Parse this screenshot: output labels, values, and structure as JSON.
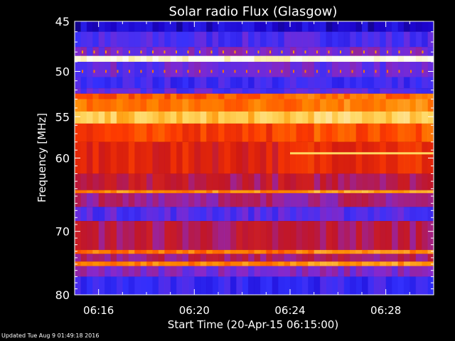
{
  "chart_data": {
    "type": "heatmap",
    "title": "Solar radio Flux (Glasgow)",
    "xlabel": "Start Time (20-Apr-15 06:15:00)",
    "ylabel": "Frequency [MHz]",
    "x_ticks": [
      "06:16",
      "06:20",
      "06:24",
      "06:28"
    ],
    "x_tick_minutes": [
      1,
      5,
      9,
      13
    ],
    "xlim_minutes": [
      0,
      15
    ],
    "y_ticks": [
      45,
      50,
      55,
      60,
      70,
      80
    ],
    "ylim": [
      45,
      80
    ],
    "y_scale": "log",
    "colormap": [
      "#000000",
      "#1a00c8",
      "#3232ff",
      "#8c28c8",
      "#c81414",
      "#ff3c00",
      "#ff9600",
      "#ffe678",
      "#ffffff"
    ],
    "bands": [
      {
        "from": 45.0,
        "to": 46.0,
        "level": 0.15
      },
      {
        "from": 46.0,
        "to": 47.5,
        "level": 0.28
      },
      {
        "from": 47.5,
        "to": 48.4,
        "level": 0.34
      },
      {
        "from": 48.4,
        "to": 49.0,
        "level": 0.97
      },
      {
        "from": 49.0,
        "to": 50.6,
        "level": 0.32
      },
      {
        "from": 50.6,
        "to": 51.8,
        "level": 0.26
      },
      {
        "from": 51.8,
        "to": 52.4,
        "level": 0.3
      },
      {
        "from": 52.4,
        "to": 53.0,
        "level": 0.66
      },
      {
        "from": 53.0,
        "to": 54.4,
        "level": 0.7
      },
      {
        "from": 54.4,
        "to": 55.8,
        "level": 0.82
      },
      {
        "from": 55.8,
        "to": 58.0,
        "level": 0.62
      },
      {
        "from": 58.0,
        "to": 62.0,
        "level": 0.55
      },
      {
        "from": 62.0,
        "to": 64.2,
        "level": 0.47
      },
      {
        "from": 64.2,
        "to": 64.6,
        "level": 0.74
      },
      {
        "from": 64.6,
        "to": 66.5,
        "level": 0.42
      },
      {
        "from": 66.5,
        "to": 68.5,
        "level": 0.3
      },
      {
        "from": 68.5,
        "to": 72.8,
        "level": 0.46
      },
      {
        "from": 72.8,
        "to": 73.4,
        "level": 0.7
      },
      {
        "from": 73.4,
        "to": 74.6,
        "level": 0.44
      },
      {
        "from": 74.6,
        "to": 75.3,
        "level": 0.72
      },
      {
        "from": 75.3,
        "to": 77.0,
        "level": 0.36
      },
      {
        "from": 77.0,
        "to": 80.0,
        "level": 0.24
      }
    ],
    "features": [
      {
        "kind": "line",
        "freq": 59.4,
        "t_start": 9.0,
        "t_end": 15.0,
        "level": 0.85
      },
      {
        "kind": "dots",
        "freq": 48.0,
        "level": 0.75
      },
      {
        "kind": "dots",
        "freq": 50.0,
        "level": 0.7
      }
    ]
  },
  "footer": {
    "updated": "Updated Tue Aug  9 01:49:18 2016"
  }
}
